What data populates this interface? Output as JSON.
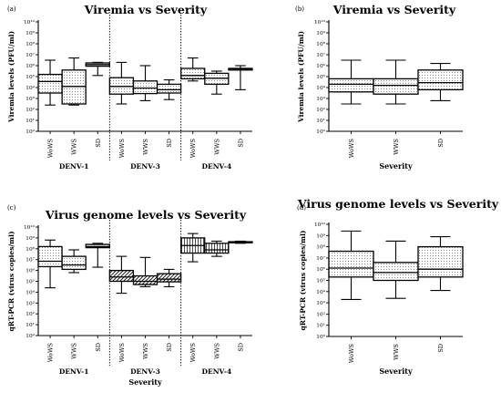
{
  "chart_data": [
    {
      "id": "a",
      "panel_label": "(a)",
      "type": "box",
      "title": "Viremia vs Severity",
      "ylabel": "Viremia levels (PFU/ml)",
      "xlabel": "",
      "y_scale": "log10",
      "ylim": [
        0,
        10
      ],
      "ytick_exponents": [
        0,
        1,
        2,
        3,
        4,
        5,
        6,
        7,
        8,
        9,
        10
      ],
      "groups": [
        {
          "label": "DENV-1",
          "categories": [
            {
              "name": "WoWS",
              "min": 2.4,
              "q1": 3.5,
              "median": 4.55,
              "q3": 5.2,
              "max": 6.5,
              "pattern": "dots"
            },
            {
              "name": "WWS",
              "min": 2.4,
              "q1": 2.5,
              "median": 4.1,
              "q3": 5.6,
              "max": 6.7,
              "pattern": "dots"
            },
            {
              "name": "SD",
              "min": 5.1,
              "q1": 5.95,
              "median": 6.1,
              "q3": 6.25,
              "max": 6.3,
              "pattern": "dots"
            }
          ]
        },
        {
          "label": "DENV-3",
          "categories": [
            {
              "name": "WoWS",
              "min": 2.5,
              "q1": 3.4,
              "median": 4.1,
              "q3": 4.9,
              "max": 6.3,
              "pattern": "dots"
            },
            {
              "name": "WWS",
              "min": 2.8,
              "q1": 3.45,
              "median": 3.95,
              "q3": 4.6,
              "max": 6.0,
              "pattern": "dots"
            },
            {
              "name": "SD",
              "min": 2.9,
              "q1": 3.5,
              "median": 3.8,
              "q3": 4.3,
              "max": 4.7,
              "pattern": "dots"
            }
          ]
        },
        {
          "label": "DENV-4",
          "categories": [
            {
              "name": "WoWS",
              "min": 4.6,
              "q1": 4.8,
              "median": 5.1,
              "q3": 5.75,
              "max": 6.7,
              "pattern": "dots"
            },
            {
              "name": "WWS",
              "min": 3.4,
              "q1": 4.3,
              "median": 4.85,
              "q3": 5.3,
              "max": 5.5,
              "pattern": "dots"
            },
            {
              "name": "SD",
              "min": 3.8,
              "q1": 5.6,
              "median": 5.7,
              "q3": 5.75,
              "max": 6.0,
              "pattern": "dots"
            }
          ]
        }
      ]
    },
    {
      "id": "b",
      "panel_label": "(b)",
      "type": "box",
      "title": "Viremia vs Severity",
      "ylabel": "Viremia levels (PFU/ml)",
      "xlabel": "Severity",
      "y_scale": "log10",
      "ylim": [
        0,
        10
      ],
      "ytick_exponents": [
        0,
        1,
        2,
        3,
        4,
        5,
        6,
        7,
        8,
        9,
        10
      ],
      "groups": [
        {
          "label": "",
          "categories": [
            {
              "name": "WoWS",
              "min": 2.5,
              "q1": 3.6,
              "median": 4.3,
              "q3": 4.8,
              "max": 6.5,
              "pattern": "dots"
            },
            {
              "name": "WWS",
              "min": 2.5,
              "q1": 3.4,
              "median": 4.2,
              "q3": 4.8,
              "max": 6.5,
              "pattern": "dots"
            },
            {
              "name": "SD",
              "min": 2.8,
              "q1": 3.8,
              "median": 4.45,
              "q3": 5.6,
              "max": 6.2,
              "pattern": "dots"
            }
          ]
        }
      ]
    },
    {
      "id": "c",
      "panel_label": "(c)",
      "type": "box",
      "title": "Virus genome levels vs Severity",
      "ylabel": "qRT-PCR (virus copies/ml)",
      "xlabel": "Severity",
      "y_scale": "log10",
      "ylim": [
        0,
        10
      ],
      "ytick_exponents": [
        0,
        1,
        2,
        3,
        4,
        5,
        6,
        7,
        8,
        9,
        10
      ],
      "groups": [
        {
          "label": "DENV-1",
          "categories": [
            {
              "name": "WoWS",
              "min": 4.4,
              "q1": 6.35,
              "median": 6.85,
              "q3": 8.2,
              "max": 8.8,
              "pattern": "dots"
            },
            {
              "name": "WWS",
              "min": 5.8,
              "q1": 6.1,
              "median": 6.5,
              "q3": 7.3,
              "max": 7.9,
              "pattern": "dots"
            },
            {
              "name": "SD",
              "min": 6.3,
              "q1": 8.1,
              "median": 8.2,
              "q3": 8.4,
              "max": 8.5,
              "pattern": "dots"
            }
          ]
        },
        {
          "label": "DENV-3",
          "categories": [
            {
              "name": "WoWS",
              "min": 3.9,
              "q1": 5.0,
              "median": 5.4,
              "q3": 6.0,
              "max": 7.3,
              "pattern": "hatch"
            },
            {
              "name": "WWS",
              "min": 4.5,
              "q1": 4.7,
              "median": 5.0,
              "q3": 5.5,
              "max": 7.2,
              "pattern": "hatch"
            },
            {
              "name": "SD",
              "min": 4.5,
              "q1": 4.95,
              "median": 5.2,
              "q3": 5.7,
              "max": 6.1,
              "pattern": "hatch"
            }
          ]
        },
        {
          "label": "DENV-4",
          "categories": [
            {
              "name": "WoWS",
              "min": 6.8,
              "q1": 7.6,
              "median": 8.3,
              "q3": 9.0,
              "max": 9.4,
              "pattern": "vlines"
            },
            {
              "name": "WWS",
              "min": 7.3,
              "q1": 7.6,
              "median": 7.9,
              "q3": 8.5,
              "max": 8.7,
              "pattern": "vlines"
            },
            {
              "name": "SD",
              "min": 8.5,
              "q1": 8.55,
              "median": 8.6,
              "q3": 8.65,
              "max": 8.7,
              "pattern": "vlines"
            }
          ]
        }
      ]
    },
    {
      "id": "d",
      "panel_label": "(d)",
      "type": "box",
      "title": "Virus genome levels vs Severity",
      "ylabel": "qRT-PCR (virus copies/ml)",
      "xlabel": "Severity",
      "y_scale": "log10",
      "ylim": [
        0,
        10
      ],
      "ytick_exponents": [
        0,
        1,
        2,
        3,
        4,
        5,
        6,
        7,
        8,
        9,
        10
      ],
      "groups": [
        {
          "label": "",
          "categories": [
            {
              "name": "WoWS",
              "min": 3.3,
              "q1": 5.3,
              "median": 6.1,
              "q3": 7.6,
              "max": 9.4,
              "pattern": "dots"
            },
            {
              "name": "WWS",
              "min": 3.4,
              "q1": 5.0,
              "median": 5.7,
              "q3": 6.6,
              "max": 8.5,
              "pattern": "dots"
            },
            {
              "name": "SD",
              "min": 4.1,
              "q1": 5.3,
              "median": 6.0,
              "q3": 8.0,
              "max": 8.9,
              "pattern": "dots"
            }
          ]
        }
      ]
    }
  ]
}
